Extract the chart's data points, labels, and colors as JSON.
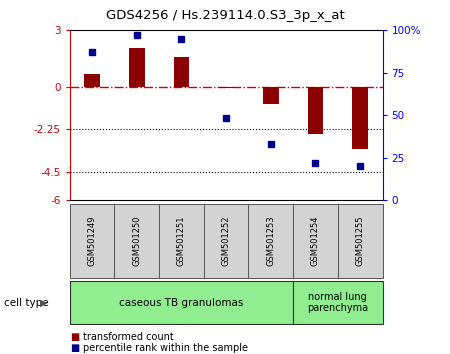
{
  "title": "GDS4256 / Hs.239114.0.S3_3p_x_at",
  "samples": [
    "GSM501249",
    "GSM501250",
    "GSM501251",
    "GSM501252",
    "GSM501253",
    "GSM501254",
    "GSM501255"
  ],
  "transformed_count": [
    0.7,
    2.05,
    1.55,
    -0.05,
    -0.9,
    -2.5,
    -3.3
  ],
  "percentile_rank": [
    87,
    97,
    95,
    48,
    33,
    22,
    20
  ],
  "ylim_left": [
    -6,
    3
  ],
  "ylim_right": [
    0,
    100
  ],
  "yticks_left": [
    -6,
    -4.5,
    -2.25,
    0,
    3
  ],
  "ytick_labels_left": [
    "-6",
    "-4.5",
    "-2.25",
    "0",
    "3"
  ],
  "yticks_right": [
    0,
    25,
    50,
    75,
    100
  ],
  "ytick_labels_right": [
    "0",
    "25",
    "50",
    "75",
    "100%"
  ],
  "dotted_lines": [
    -2.25,
    -4.5
  ],
  "bar_color": "#8B0000",
  "dot_color": "#00008B",
  "bar_width": 0.35,
  "group1_label": "caseous TB granulomas",
  "group2_label": "normal lung\nparenchyma",
  "group1_color": "#90EE90",
  "group2_color": "#90EE90",
  "cell_type_label": "cell type",
  "legend1_label": "transformed count",
  "legend2_label": "percentile rank within the sample",
  "sample_box_color": "#d3d3d3",
  "n_group1": 5,
  "n_group2": 2
}
